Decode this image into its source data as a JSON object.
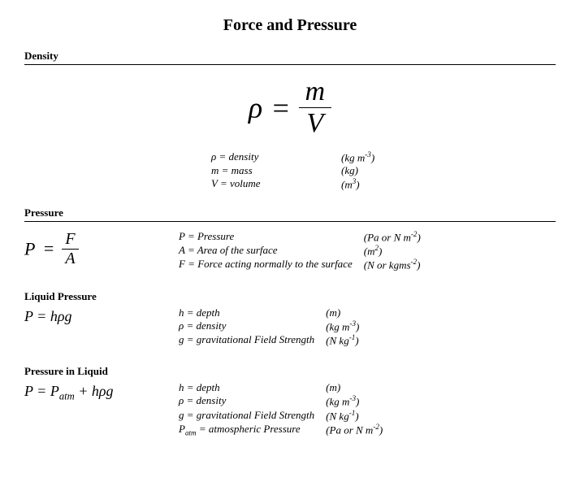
{
  "title": "Force and Pressure",
  "colors": {
    "text": "#000000",
    "background": "#ffffff",
    "rule": "#000000"
  },
  "density": {
    "heading": "Density",
    "formula": {
      "lhs": "ρ",
      "num": "m",
      "den": "V"
    },
    "legend": [
      {
        "sym": "ρ = density",
        "unitPre": "(kg m",
        "exp": "-3",
        "unitPost": ")"
      },
      {
        "sym": "m = mass",
        "unitPre": "(kg)",
        "exp": "",
        "unitPost": ""
      },
      {
        "sym": "V = volume",
        "unitPre": "(m",
        "exp": "3",
        "unitPost": ")"
      }
    ]
  },
  "pressure": {
    "heading": "Pressure",
    "formula": {
      "lhs": "P",
      "num": "F",
      "den": "A"
    },
    "legend": [
      {
        "sym": "P = Pressure",
        "unitPre": "(Pa or N m",
        "exp": "-2",
        "unitPost": ")"
      },
      {
        "sym": "A = Area of the surface",
        "unitPre": "(m",
        "exp": "2",
        "unitPost": ")"
      },
      {
        "sym": "F = Force acting normally to the surface",
        "unitPre": "(N or kgms",
        "exp": "-2",
        "unitPost": ")"
      }
    ]
  },
  "liquid": {
    "heading": "Liquid Pressure",
    "formula": "P = hρg",
    "legend": [
      {
        "sym": "h = depth",
        "unitPre": "(m)",
        "exp": "",
        "unitPost": ""
      },
      {
        "sym": "ρ = density",
        "unitPre": "(kg m",
        "exp": "-3",
        "unitPost": ")"
      },
      {
        "sym": "g = gravitational Field Strength",
        "unitPre": "(N kg",
        "exp": "-1",
        "unitPost": ")"
      }
    ]
  },
  "inliquid": {
    "heading": "Pressure in Liquid",
    "formula": {
      "pre": "P = P",
      "sub": "atm",
      "post": " + hρg"
    },
    "legend": [
      {
        "sym": "h = depth",
        "unitPre": "(m)",
        "exp": "",
        "unitPost": ""
      },
      {
        "sym": "ρ = density",
        "unitPre": "(kg m",
        "exp": "-3",
        "unitPost": ")"
      },
      {
        "sym": "g = gravitational Field Strength",
        "unitPre": "(N kg",
        "exp": "-1",
        "unitPost": ")"
      },
      {
        "symPre": "P",
        "symSub": "atm",
        "symPost": " = atmospheric Pressure",
        "unitPre": "(Pa or N m",
        "exp": "-2",
        "unitPost": ")"
      }
    ]
  }
}
